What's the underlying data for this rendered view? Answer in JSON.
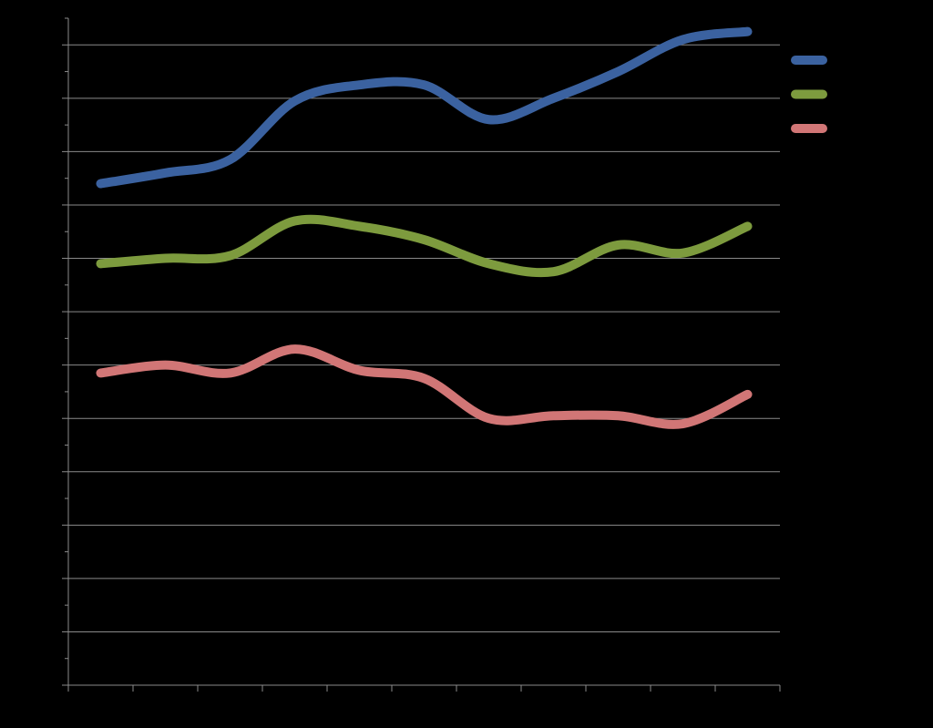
{
  "chart_data": {
    "type": "line",
    "categories": [
      null,
      null,
      null,
      null,
      null,
      null,
      null,
      null,
      null,
      null,
      null
    ],
    "series": [
      {
        "color": "#3b62a0",
        "values": [
          9.4,
          9.6,
          9.85,
          10.95,
          11.25,
          11.25,
          10.6,
          11.0,
          11.5,
          12.1,
          12.25
        ]
      },
      {
        "color": "#7d9b3e",
        "values": [
          7.9,
          8.0,
          8.05,
          8.7,
          8.6,
          8.35,
          7.9,
          7.75,
          8.25,
          8.1,
          8.6
        ]
      },
      {
        "color": "#d17676",
        "values": [
          5.85,
          6.0,
          5.85,
          6.3,
          5.9,
          5.75,
          5.0,
          5.05,
          5.05,
          4.9,
          5.45
        ]
      }
    ],
    "ylim": [
      0,
      12.5
    ],
    "yticks": [
      0,
      1,
      2,
      3,
      4,
      5,
      6,
      7,
      8,
      9,
      10,
      11,
      12
    ],
    "yminorticks": [
      0.5,
      1.5,
      2.5,
      3.5,
      4.5,
      5.5,
      6.5,
      7.5,
      8.5,
      9.5,
      10.5,
      11.5,
      12.5
    ],
    "grid": true,
    "legend": "right"
  }
}
